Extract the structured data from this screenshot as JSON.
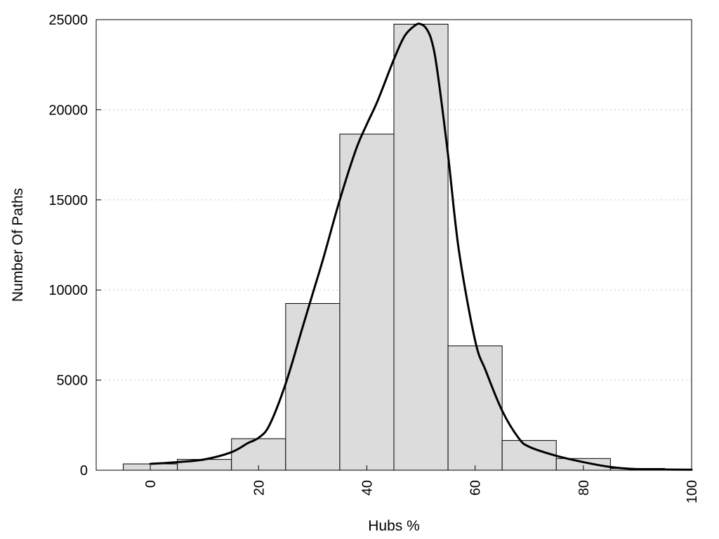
{
  "chart_data": {
    "type": "bar",
    "title": "",
    "xlabel": "Hubs %",
    "ylabel": "Number Of Paths",
    "xlim": [
      -10,
      100
    ],
    "ylim": [
      0,
      25000
    ],
    "x_ticks": [
      0,
      20,
      40,
      60,
      80,
      100
    ],
    "y_ticks": [
      0,
      5000,
      10000,
      15000,
      20000,
      25000
    ],
    "grid": "horizontal dotted",
    "bar_fill": "#dcdcdc",
    "bin_width": 10,
    "categories": [
      0,
      10,
      20,
      30,
      40,
      50,
      60,
      70,
      80,
      90
    ],
    "values": [
      350,
      600,
      1750,
      9250,
      18650,
      24750,
      6900,
      1650,
      650,
      100
    ],
    "density_curve": {
      "x": [
        0,
        5,
        10,
        15,
        18,
        20,
        22,
        25,
        28,
        30,
        32,
        35,
        38,
        40,
        42,
        45,
        47,
        49,
        50,
        51,
        52,
        53,
        55,
        57,
        60,
        62,
        65,
        68,
        70,
        75,
        80,
        85,
        90,
        95,
        100
      ],
      "y": [
        350,
        450,
        600,
        1000,
        1500,
        1800,
        2500,
        4800,
        7800,
        9800,
        11800,
        15000,
        17800,
        19200,
        20500,
        22800,
        24100,
        24700,
        24750,
        24500,
        23800,
        22200,
        17500,
        12200,
        7200,
        5500,
        3300,
        1800,
        1300,
        800,
        450,
        180,
        60,
        40,
        30
      ]
    }
  }
}
